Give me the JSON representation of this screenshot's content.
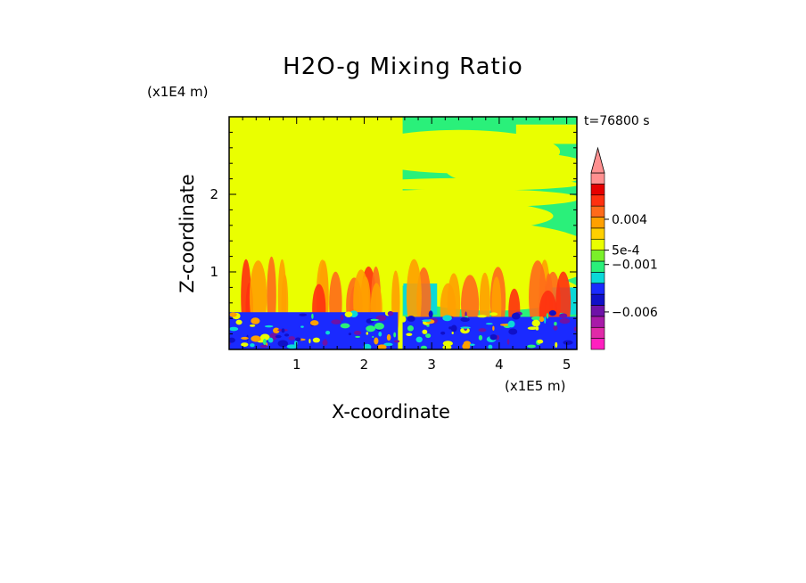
{
  "chart_data": {
    "type": "heatmap",
    "title": "H2O-g Mixing Ratio",
    "xlabel": "X-coordinate",
    "ylabel": "Z-coordinate",
    "x_scale_label": "(x1E5 m)",
    "y_scale_label": "(x1E4 m)",
    "timestamp": "t=76800 s",
    "xlim": [
      0,
      5.15
    ],
    "ylim": [
      0,
      3.0
    ],
    "x_ticks": [
      "1",
      "2",
      "3",
      "4",
      "5"
    ],
    "x_tick_values": [
      1,
      2,
      3,
      4,
      5
    ],
    "y_ticks": [
      "1",
      "2"
    ],
    "y_tick_values": [
      1,
      2
    ],
    "colorbar": {
      "colors": [
        "#ff1fbf",
        "#e02aa8",
        "#a81aa8",
        "#6e12a8",
        "#1010c8",
        "#1a2aff",
        "#0bd8d8",
        "#2af07a",
        "#7af02a",
        "#eaff00",
        "#ffd000",
        "#ffa000",
        "#ff6a1a",
        "#ff3010",
        "#e60000",
        "#ff9090"
      ],
      "labels": [
        {
          "text": "0.004",
          "level": 11.8
        },
        {
          "text": "5e-4",
          "level": 9.0
        },
        {
          "text": "−0.001",
          "level": 7.7
        },
        {
          "text": "−0.006",
          "level": 3.4
        }
      ]
    },
    "regions": {
      "upper_left": "#eaff00",
      "upper_right_background": "#2af07a",
      "upper_right_bands": "#eaff00",
      "surface_layer": "#1a2aff",
      "plumes": "#ff6a1a",
      "moist_patch": "#0bd8d8"
    }
  }
}
